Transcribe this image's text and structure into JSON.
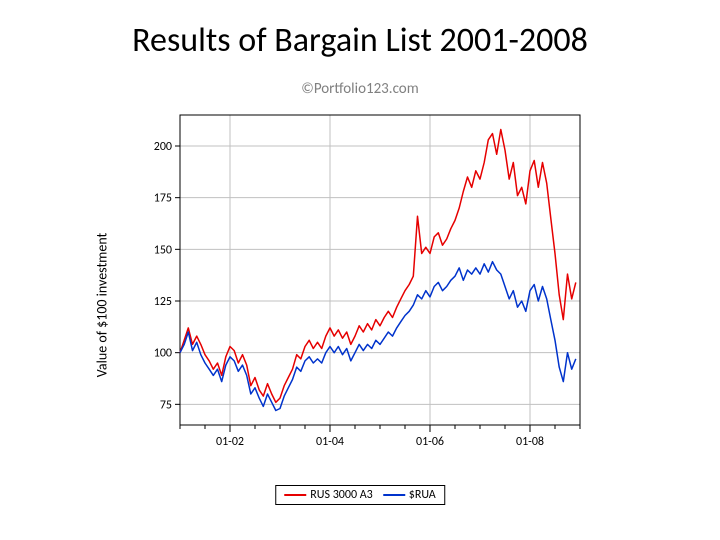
{
  "title": "Results of Bargain List 2001-2008",
  "footer": "©Portfolio123.com",
  "chart": {
    "type": "line",
    "ylabel": "Value of $100 investment",
    "label_fontsize": 14,
    "background_color": "#ffffff",
    "panel_border_color": "#000000",
    "grid_color": "#c0c0c0",
    "axis_tick_color": "#000000",
    "tick_label_fontsize": 12,
    "tick_label_color": "#000000",
    "ylim": [
      65,
      215
    ],
    "yticks": [
      75,
      100,
      125,
      150,
      175,
      200
    ],
    "xlim": [
      0,
      96
    ],
    "xticks": [
      {
        "pos": 12,
        "label": "01-02"
      },
      {
        "pos": 36,
        "label": "01-04"
      },
      {
        "pos": 60,
        "label": "01-06"
      },
      {
        "pos": 84,
        "label": "01-08"
      }
    ],
    "xminor_step": 6,
    "line_width": 1.5,
    "series": [
      {
        "name": "RUS 3000 A3",
        "color": "#e60000",
        "data": [
          100,
          106,
          112,
          104,
          108,
          104,
          99,
          96,
          92,
          95,
          89,
          98,
          103,
          101,
          95,
          99,
          94,
          84,
          88,
          82,
          79,
          85,
          80,
          76,
          78,
          84,
          88,
          92,
          99,
          97,
          103,
          106,
          102,
          105,
          102,
          108,
          112,
          108,
          111,
          107,
          110,
          104,
          108,
          113,
          110,
          114,
          111,
          116,
          113,
          117,
          120,
          117,
          122,
          126,
          130,
          133,
          137,
          166,
          148,
          151,
          148,
          156,
          158,
          152,
          155,
          160,
          164,
          170,
          178,
          185,
          180,
          188,
          184,
          192,
          203,
          206,
          196,
          208,
          198,
          184,
          192,
          176,
          180,
          172,
          188,
          193,
          180,
          192,
          182,
          165,
          148,
          128,
          116,
          138,
          126,
          134
        ]
      },
      {
        "name": "$RUA",
        "color": "#0033cc",
        "data": [
          100,
          104,
          110,
          101,
          105,
          99,
          95,
          92,
          89,
          92,
          86,
          94,
          98,
          96,
          91,
          94,
          89,
          80,
          83,
          78,
          74,
          80,
          76,
          72,
          73,
          79,
          83,
          87,
          93,
          91,
          96,
          98,
          95,
          97,
          95,
          100,
          103,
          100,
          103,
          99,
          102,
          96,
          100,
          104,
          101,
          104,
          102,
          106,
          104,
          107,
          110,
          108,
          112,
          115,
          118,
          120,
          123,
          128,
          126,
          130,
          127,
          132,
          134,
          130,
          132,
          135,
          137,
          141,
          135,
          140,
          138,
          141,
          138,
          143,
          139,
          144,
          140,
          138,
          132,
          126,
          130,
          122,
          125,
          120,
          130,
          133,
          125,
          132,
          126,
          116,
          106,
          93,
          86,
          100,
          92,
          97
        ]
      }
    ],
    "legend": {
      "border_color": "#000000",
      "background": "#ffffff",
      "fontsize": 12
    }
  }
}
